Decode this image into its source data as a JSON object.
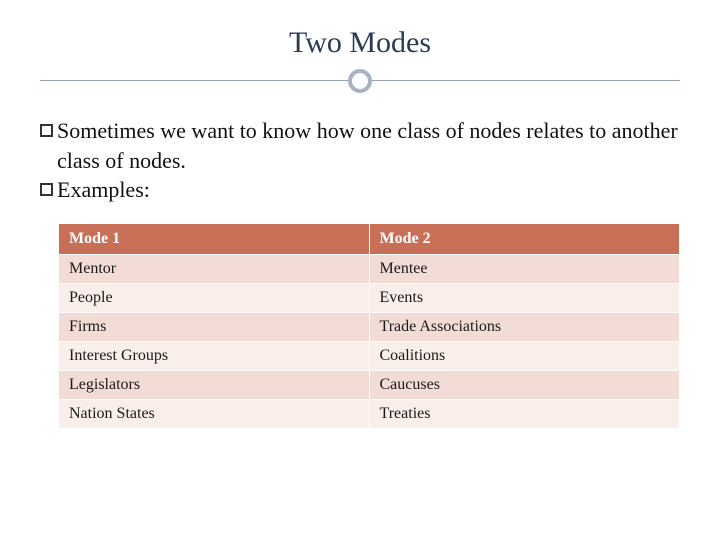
{
  "title": "Two Modes",
  "bullets": [
    "Sometimes we want to know how one class of nodes relates to another class of nodes.",
    "Examples:"
  ],
  "table": {
    "columns": [
      "Mode 1",
      "Mode 2"
    ],
    "rows": [
      [
        "Mentor",
        "Mentee"
      ],
      [
        "People",
        "Events"
      ],
      [
        "Firms",
        "Trade Associations"
      ],
      [
        "Interest Groups",
        "Coalitions"
      ],
      [
        "Legislators",
        "Caucuses"
      ],
      [
        "Nation States",
        "Treaties"
      ]
    ],
    "header_bg": "#c86f58",
    "header_text_color": "#ffffff",
    "row_bg_odd": "#f2dcd5",
    "row_bg_even": "#f9eeea",
    "cell_text_color": "#1a1a1a",
    "border_color": "#ffffff",
    "col_widths": [
      "50%",
      "50%"
    ]
  },
  "styling": {
    "title_color": "#2a3b55",
    "title_fontsize": 30,
    "line_color": "#9aa3b5",
    "circle_border_color": "#a9b2c3",
    "bullet_fontsize": 22,
    "table_fontsize": 16,
    "background": "#ffffff"
  }
}
